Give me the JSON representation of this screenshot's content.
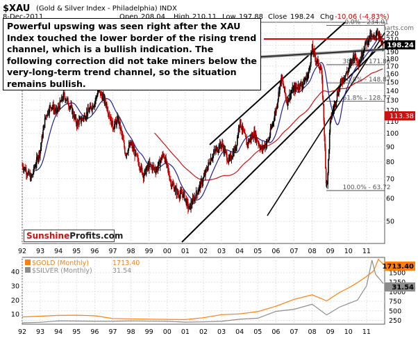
{
  "header": {
    "symbol": "$XAU",
    "name": "(Gold & Silver Index - Philadelphia) INDX",
    "date": "8-Dec-2011",
    "open_label": "Open",
    "open": "208.04",
    "high_label": "High",
    "high": "210.11",
    "low_label": "Low",
    "low": "197.88",
    "close_label": "Close",
    "close": "198.24",
    "chg_label": "Chg",
    "chg": "-10.06 (-4.83%)",
    "watermark": "@StockCharts.com"
  },
  "annotation": "Powerful upswing was seen right after the XAU Index touched the lower border of the rising trend channel, which is a bullish indication. The following correction did not take miners below the very-long-term trend channel, so the situation remains bullish.",
  "brand": {
    "part1": "Sunshine",
    "part2": "Profits.com"
  },
  "colors": {
    "up": "#000000",
    "down": "#cc0000",
    "ma_short": "#1e1e9a",
    "ma_long": "#cc1111",
    "gold": "#ff7f0e",
    "silver": "#8c8c8c",
    "close_box": "#000000"
  },
  "chart_data": [
    {
      "type": "candlestick",
      "scale": "log",
      "x_tick_labels": [
        "92",
        "93",
        "94",
        "95",
        "96",
        "97",
        "98",
        "99",
        "00",
        "01",
        "02",
        "03",
        "04",
        "05",
        "06",
        "07",
        "08",
        "09",
        "10",
        "11"
      ],
      "y_tick_labels": [
        "220",
        "210",
        "200",
        "190",
        "180",
        "170",
        "160",
        "150",
        "140",
        "130",
        "120",
        "110",
        "100",
        "90",
        "80",
        "70",
        "60",
        "50"
      ],
      "ylim": [
        42,
        240
      ],
      "last_close": "198.24",
      "ma_value": "113.38",
      "fib_levels": [
        {
          "label": "0.0%",
          "value": "234.01"
        },
        {
          "label": "38.2%",
          "value": "171.86"
        },
        {
          "label": "50.0%",
          "value": "148.87"
        },
        {
          "label": "61.8%",
          "value": "128.77"
        },
        {
          "label": "100.0%",
          "value": "63.72"
        }
      ],
      "series": [
        {
          "x": [
            1992.0,
            1992.5,
            1993.0,
            1993.3,
            1993.6,
            1993.9,
            1994.3,
            1994.7,
            1995.0,
            1995.3,
            1995.7,
            1996.0,
            1996.2,
            1996.6,
            1997.0,
            1997.3,
            1997.7,
            1998.0,
            1998.4,
            1998.7,
            1999.0,
            1999.4,
            1999.8,
            2000.2,
            2000.6,
            2000.9,
            2001.2,
            2001.6,
            2002.0,
            2002.4,
            2002.7,
            2003.0,
            2003.4,
            2003.8,
            2004.0,
            2004.4,
            2004.8,
            2005.2,
            2005.6,
            2006.0,
            2006.3,
            2006.6,
            2006.9,
            2007.2,
            2007.5,
            2007.8,
            2008.0,
            2008.2,
            2008.5,
            2008.75,
            2008.85,
            2009.0,
            2009.3,
            2009.6,
            2010.0,
            2010.3,
            2010.6,
            2010.9,
            2011.2,
            2011.4,
            2011.6,
            2011.8,
            2011.93
          ],
          "y": [
            78,
            70,
            88,
            115,
            125,
            118,
            135,
            122,
            108,
            112,
            120,
            128,
            140,
            128,
            105,
            112,
            85,
            92,
            80,
            72,
            78,
            75,
            85,
            68,
            62,
            62,
            55,
            62,
            70,
            82,
            88,
            92,
            80,
            90,
            110,
            92,
            100,
            88,
            95,
            120,
            155,
            128,
            140,
            145,
            148,
            160,
            195,
            180,
            165,
            70,
            68,
            110,
            130,
            150,
            165,
            185,
            175,
            200,
            215,
            210,
            225,
            205,
            198
          ]
        }
      ]
    },
    {
      "type": "line",
      "right_tick_labels": [
        "1500",
        "1250",
        "1000",
        "750",
        "500",
        "250"
      ],
      "left_tick_labels": [
        "40",
        "30",
        "20",
        "10"
      ],
      "x_tick_labels": [
        "92",
        "93",
        "94",
        "95",
        "96",
        "97",
        "98",
        "99",
        "00",
        "01",
        "02",
        "03",
        "04",
        "05",
        "06",
        "07",
        "08",
        "09",
        "10",
        "11"
      ],
      "series": [
        {
          "name": "$GOLD (Monthly)",
          "value": "1713.40",
          "x": [
            1992,
            1993,
            1994,
            1995,
            1996,
            1997,
            1998,
            1999,
            2000,
            2001,
            2002,
            2003,
            2004,
            2005,
            2006,
            2007,
            2008,
            2008.8,
            2009.5,
            2010,
            2010.5,
            2011,
            2011.4,
            2011.65,
            2011.93
          ],
          "y": [
            340,
            360,
            380,
            385,
            370,
            300,
            290,
            280,
            275,
            270,
            320,
            400,
            420,
            480,
            620,
            800,
            920,
            760,
            980,
            1100,
            1240,
            1400,
            1550,
            1850,
            1713
          ]
        },
        {
          "name": "$SILVER (Monthly)",
          "value": "31.54",
          "x": [
            1992,
            1993,
            1994,
            1995,
            1996,
            1997,
            1998,
            1999,
            2000,
            2001,
            2002,
            2003,
            2004,
            2005,
            2006,
            2007,
            2008,
            2008.8,
            2009.5,
            2010,
            2010.5,
            2011,
            2011.3,
            2011.5,
            2011.93
          ],
          "y": [
            4,
            4.3,
            5.3,
            5.2,
            5,
            5,
            5.3,
            5.1,
            5,
            4.4,
            4.6,
            5,
            6.5,
            7.2,
            12,
            13.5,
            17,
            9.5,
            15,
            17.5,
            20,
            30,
            48,
            38,
            31.54
          ]
        }
      ]
    }
  ]
}
